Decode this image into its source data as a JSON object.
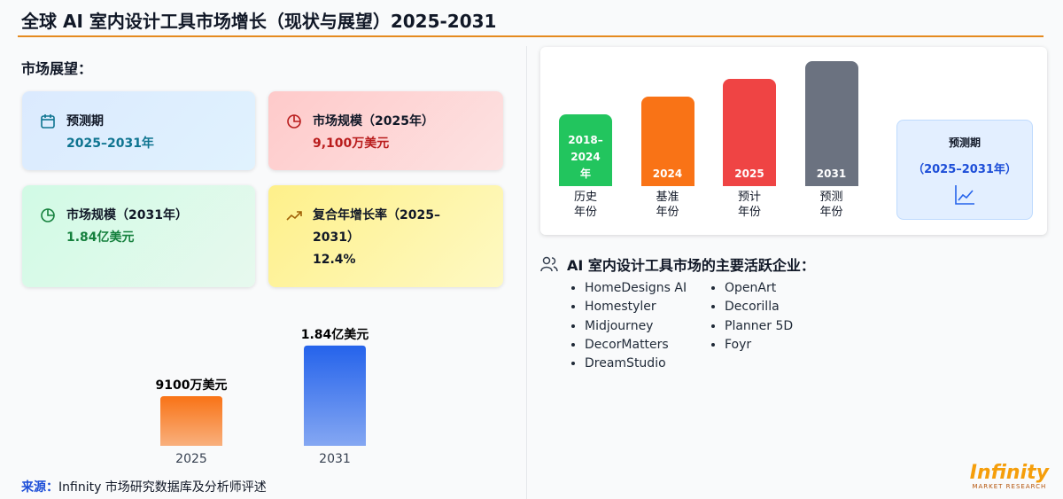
{
  "header": {
    "title": "全球 AI 室内设计工具市场增长（现状与展望）2025-2031"
  },
  "outlook": {
    "title": "市场展望：",
    "cards": [
      {
        "label": "预测期",
        "value": "2025–2031年"
      },
      {
        "label": "市场规模（2025年）",
        "value": "9,100万美元"
      },
      {
        "label": "市场规模（2031年）",
        "value": "1.84亿美元"
      },
      {
        "label": "复合年增长率（2025–2031）",
        "value": "12.4%"
      }
    ]
  },
  "chart_data": {
    "type": "bar",
    "categories": [
      "2025",
      "2031"
    ],
    "values": [
      9100,
      18400
    ],
    "value_labels": [
      "9100万美元",
      "1.84亿美元"
    ],
    "colors": [
      "#f97316",
      "#2563eb"
    ],
    "ylim": [
      0,
      20000
    ]
  },
  "source": {
    "label": "来源：",
    "text": "Infinity 市场研究数据库及分析师评述"
  },
  "timeline": {
    "stages": [
      {
        "year": "2018–2024年",
        "label": "历史年份",
        "color": "#22c55e"
      },
      {
        "year": "2024",
        "label": "基准年份",
        "color": "#f97316"
      },
      {
        "year": "2025",
        "label": "预计年份",
        "color": "#ef4444"
      },
      {
        "year": "2031",
        "label": "预测年份",
        "color": "#6b7280"
      }
    ],
    "forecast": {
      "label": "预测期",
      "period": "（2025–2031年）"
    }
  },
  "companies": {
    "title": "AI 室内设计工具市场的主要活跃企业：",
    "columns": [
      [
        "HomeDesigns AI",
        "Homestyler",
        "Midjourney",
        "DecorMatters",
        "DreamStudio"
      ],
      [
        "OpenArt",
        "Decorilla",
        "Planner 5D",
        "Foyr"
      ]
    ]
  },
  "logo": {
    "name": "Infinity",
    "tagline": "MARKET RESEARCH"
  }
}
